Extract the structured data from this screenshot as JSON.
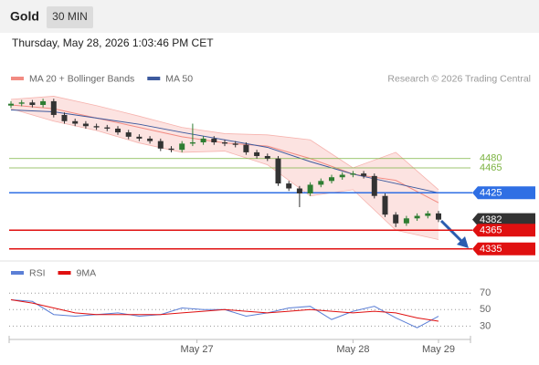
{
  "header": {
    "symbol": "Gold",
    "interval": "30 MIN",
    "datetime": "Thursday, May 28, 2026 1:03:46 PM CET"
  },
  "chart_data": [
    {
      "type": "candlestick",
      "legend": [
        {
          "name": "MA 20 + Bollinger Bands",
          "color": "#f28b82"
        },
        {
          "name": "MA 50",
          "color": "#3d5a9e"
        }
      ],
      "credit": "Research © 2026 Trading Central",
      "up_color": "#2e7d32",
      "down_color": "#333333",
      "ylim": [
        4320,
        4588
      ],
      "xlim": [
        0,
        40
      ],
      "xticks": [
        {
          "value": 17.4,
          "label": "May 27"
        },
        {
          "value": 32,
          "label": "May 28"
        },
        {
          "value": 40,
          "label": "May 29"
        }
      ],
      "open": [
        4565,
        4568,
        4570,
        4566,
        4572,
        4550,
        4540,
        4536,
        4532,
        4530,
        4528,
        4522,
        4515,
        4512,
        4508,
        4496,
        4494,
        4504,
        4506,
        4512,
        4506,
        4504,
        4502,
        4490,
        4484,
        4480,
        4440,
        4432,
        4424,
        4438,
        4444,
        4450,
        4454,
        4456,
        4452,
        4420,
        4390,
        4376,
        4384,
        4388,
        4392
      ],
      "high": [
        4572,
        4574,
        4574,
        4576,
        4576,
        4554,
        4544,
        4540,
        4536,
        4534,
        4532,
        4526,
        4519,
        4516,
        4512,
        4500,
        4508,
        4536,
        4516,
        4516,
        4510,
        4508,
        4506,
        4494,
        4488,
        4484,
        4444,
        4436,
        4442,
        4448,
        4454,
        4458,
        4460,
        4460,
        4456,
        4424,
        4394,
        4388,
        4392,
        4396,
        4396
      ],
      "low": [
        4561,
        4564,
        4562,
        4562,
        4546,
        4536,
        4532,
        4528,
        4526,
        4524,
        4518,
        4511,
        4508,
        4504,
        4492,
        4490,
        4490,
        4500,
        4502,
        4502,
        4500,
        4498,
        4486,
        4480,
        4476,
        4436,
        4428,
        4402,
        4420,
        4434,
        4440,
        4446,
        4450,
        4448,
        4416,
        4386,
        4370,
        4372,
        4380,
        4384,
        4378
      ],
      "close": [
        4568,
        4570,
        4566,
        4572,
        4550,
        4540,
        4536,
        4532,
        4530,
        4528,
        4522,
        4515,
        4512,
        4508,
        4496,
        4494,
        4504,
        4506,
        4512,
        4506,
        4504,
        4502,
        4490,
        4484,
        4480,
        4440,
        4432,
        4424,
        4438,
        4444,
        4450,
        4454,
        4456,
        4452,
        4420,
        4390,
        4376,
        4384,
        4388,
        4392,
        4382
      ],
      "overlay_x": [
        0,
        4,
        8,
        12,
        16,
        20,
        24,
        28,
        32,
        36,
        40
      ],
      "overlays": [
        {
          "name": "upper",
          "color": "#f6b3ae",
          "values": [
            4575,
            4580,
            4565,
            4548,
            4530,
            4520,
            4518,
            4510,
            4465,
            4490,
            4430
          ]
        },
        {
          "name": "lower",
          "color": "#f6b3ae",
          "values": [
            4560,
            4540,
            4525,
            4505,
            4490,
            4492,
            4470,
            4420,
            4430,
            4365,
            4350
          ]
        },
        {
          "name": "MA 20",
          "color": "#f28b82",
          "values": [
            4566,
            4560,
            4545,
            4530,
            4515,
            4505,
            4500,
            4480,
            4455,
            4445,
            4409
          ]
        },
        {
          "name": "MA 50",
          "color": "#3d5a9e",
          "values": [
            4558,
            4555,
            4545,
            4535,
            4522,
            4510,
            4498,
            4475,
            4455,
            4440,
            4425
          ]
        }
      ],
      "levels": [
        {
          "value": 4480,
          "color": "#7cb342",
          "line": true,
          "tag": false
        },
        {
          "value": 4465,
          "color": "#7cb342",
          "line": true,
          "tag": false
        },
        {
          "value": 4425,
          "color": "#2f6fe4",
          "line": true,
          "tag": true
        },
        {
          "value": 4382,
          "color": "#333333",
          "line": false,
          "tag": true
        },
        {
          "value": 4365,
          "color": "#e01010",
          "line": true,
          "tag": true
        },
        {
          "value": 4335,
          "color": "#e01010",
          "line": true,
          "tag": true
        }
      ]
    },
    {
      "type": "line",
      "legend": [
        {
          "name": "RSI",
          "color": "#5b7fd6"
        },
        {
          "name": "9MA",
          "color": "#e01010"
        }
      ],
      "ylim": [
        16,
        88
      ],
      "yticks": [
        70,
        50,
        30
      ],
      "grid": true,
      "x": [
        0,
        2,
        4,
        6,
        8,
        10,
        12,
        14,
        16,
        18,
        20,
        22,
        24,
        26,
        28,
        30,
        32,
        34,
        36,
        38,
        40
      ],
      "series": [
        {
          "name": "RSI",
          "color": "#5b7fd6",
          "values": [
            62,
            60,
            44,
            42,
            44,
            46,
            42,
            44,
            52,
            50,
            50,
            42,
            46,
            52,
            54,
            38,
            48,
            54,
            40,
            28,
            42
          ]
        },
        {
          "name": "9MA",
          "color": "#e01010",
          "values": [
            62,
            58,
            52,
            46,
            44,
            44,
            44,
            44,
            46,
            48,
            50,
            48,
            46,
            48,
            50,
            48,
            46,
            48,
            46,
            40,
            36
          ]
        }
      ]
    }
  ]
}
